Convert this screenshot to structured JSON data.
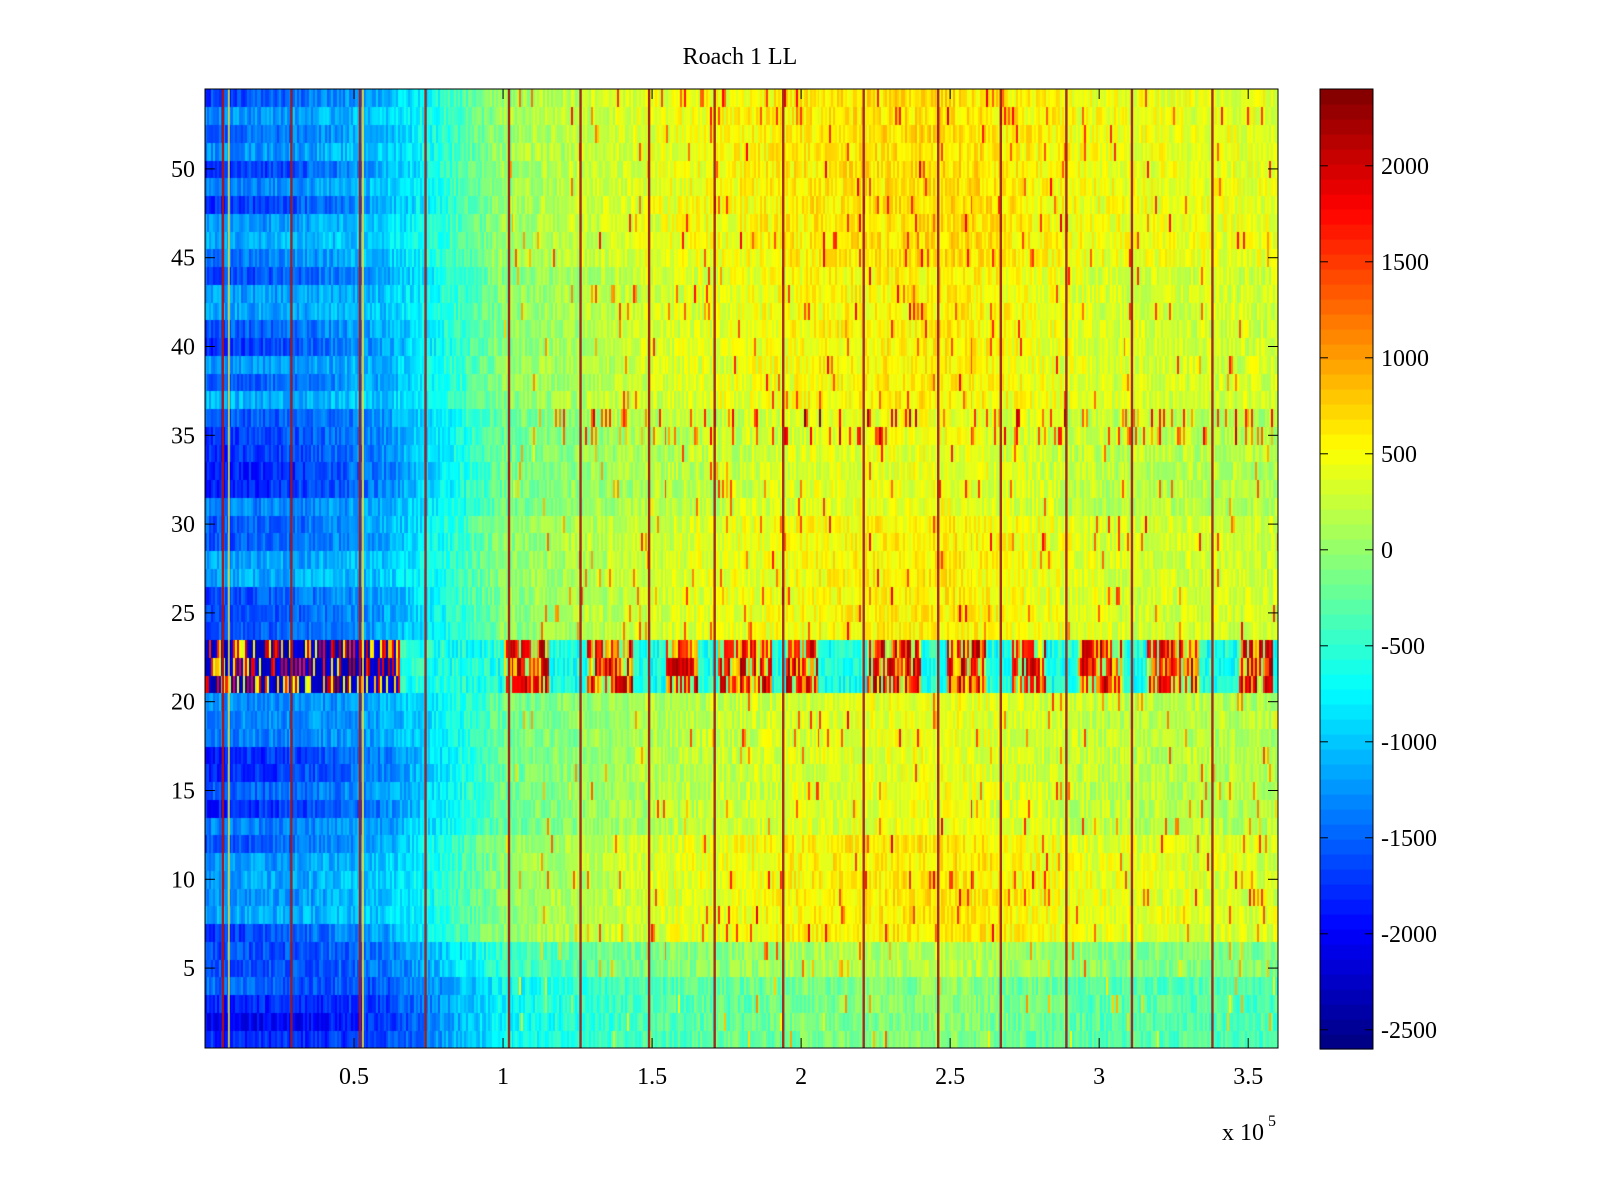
{
  "chart_data": {
    "type": "heatmap",
    "title": "Roach 1 LL",
    "xlabel": "",
    "ylabel": "",
    "x_multiplier_label": "x 10",
    "x_multiplier_exponent": "5",
    "xlim": [
      0,
      360000
    ],
    "ylim": [
      0.5,
      54.5
    ],
    "xticks": [
      50000,
      100000,
      150000,
      200000,
      250000,
      300000,
      350000
    ],
    "xtick_labels": [
      "0.5",
      "1",
      "1.5",
      "2",
      "2.5",
      "3",
      "3.5"
    ],
    "yticks": [
      5,
      10,
      15,
      20,
      25,
      30,
      35,
      40,
      45,
      50
    ],
    "ytick_labels": [
      "5",
      "10",
      "15",
      "20",
      "25",
      "30",
      "35",
      "40",
      "45",
      "50"
    ],
    "colormap": "jet",
    "colorbar": {
      "clim": [
        -2600,
        2400
      ],
      "ticks": [
        2000,
        1500,
        1000,
        500,
        0,
        -500,
        -1000,
        -1500,
        -2000,
        -2500
      ],
      "tick_labels": [
        "2000",
        "1500",
        "1000",
        "500",
        "0",
        "-500",
        "-1000",
        "-1500",
        "-2000",
        "-2500"
      ]
    },
    "rows": 54,
    "column_profile": {
      "x": [
        0,
        30000,
        60000,
        75000,
        100000,
        150000,
        200000,
        250000,
        300000,
        360000
      ],
      "value": [
        -1600,
        -1500,
        -1250,
        -900,
        -200,
        150,
        350,
        450,
        200,
        150
      ]
    },
    "row_offsets": [
      {
        "rows": [
          1,
          4
        ],
        "value": -500
      },
      {
        "rows": [
          5,
          6
        ],
        "value": -250
      },
      {
        "rows": [
          7,
          12
        ],
        "value": 200
      },
      {
        "rows": [
          13,
          20
        ],
        "value": 0
      },
      {
        "rows": [
          21,
          23
        ],
        "value": "alternating -2400 / 2000 bursts"
      },
      {
        "rows": [
          24,
          30
        ],
        "value": 150
      },
      {
        "rows": [
          31,
          36
        ],
        "value": 0
      },
      {
        "rows": [
          37,
          44
        ],
        "value": 150
      },
      {
        "rows": [
          45,
          54
        ],
        "value": 250
      }
    ],
    "vertical_stripes_x": [
      6000,
      29000,
      52000,
      74000,
      102000,
      126000,
      149000,
      171000,
      194000,
      221000,
      246000,
      267000,
      289000,
      311000,
      338000
    ],
    "bright_burst_x_ranges": [
      [
        0,
        65000
      ],
      [
        100000,
        115000
      ],
      [
        128000,
        143000
      ],
      [
        155000,
        165000
      ],
      [
        172000,
        190000
      ],
      [
        195000,
        205000
      ],
      [
        222000,
        240000
      ],
      [
        249000,
        262000
      ],
      [
        271000,
        282000
      ],
      [
        293000,
        308000
      ],
      [
        316000,
        333000
      ],
      [
        347000,
        358000
      ]
    ]
  }
}
